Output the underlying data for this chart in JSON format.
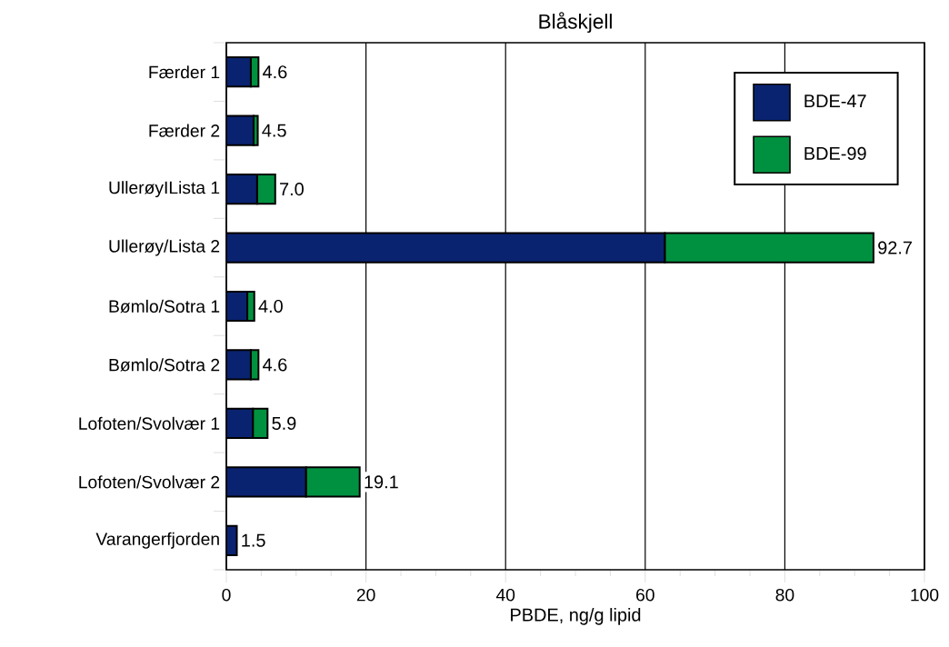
{
  "chart_data": {
    "type": "bar",
    "orientation": "horizontal",
    "stacked": true,
    "title": "Blåskjell",
    "xlabel": "PBDE, ng/g lipid",
    "categories": [
      "Færder 1",
      "Færder 2",
      "UllerøyILista 1",
      "Ullerøy/Lista 2",
      "Bømlo/Sotra 1",
      "Bømlo/Sotra 2",
      "Lofoten/Svolvær 1",
      "Lofoten/Svolvær 2",
      "Varangerfjorden"
    ],
    "series": [
      {
        "name": "BDE-47",
        "color": "#0a2370",
        "values": [
          3.5,
          3.9,
          4.4,
          62.8,
          3.0,
          3.5,
          3.8,
          11.4,
          1.5
        ]
      },
      {
        "name": "BDE-99",
        "color": "#009140",
        "values": [
          1.1,
          0.6,
          2.6,
          29.9,
          1.0,
          1.1,
          2.1,
          7.7,
          0.0
        ]
      }
    ],
    "totals": [
      "4.6",
      "4.5",
      "7.0",
      "92.7",
      "4.0",
      "4.6",
      "5.9",
      "19.1",
      "1.5"
    ],
    "xlim": [
      0,
      100
    ],
    "xticks": [
      0,
      20,
      40,
      60,
      80,
      100
    ],
    "grid": "x",
    "legend": "top right"
  }
}
